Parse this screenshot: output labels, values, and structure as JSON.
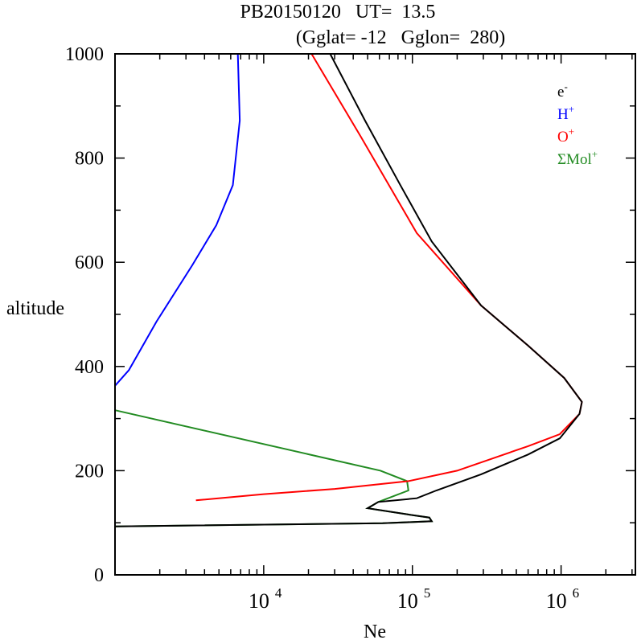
{
  "chart_data": {
    "type": "line",
    "title": "PB20150120   UT=  13.5",
    "subtitle": "(Gglat= -12   Gglon=  280)",
    "xlabel": "Ne",
    "ylabel": "altitude",
    "xscale": "log",
    "xlim": [
      1000,
      3160000
    ],
    "ylim": [
      0,
      1000
    ],
    "xticks": [
      {
        "base": "10",
        "exp": "4",
        "value": 10000
      },
      {
        "base": "10",
        "exp": "5",
        "value": 100000
      },
      {
        "base": "10",
        "exp": "6",
        "value": 1000000
      }
    ],
    "yticks": [
      "0",
      "200",
      "400",
      "600",
      "800",
      "1000"
    ],
    "legend_placement": "top-right",
    "series": [
      {
        "name": "e-",
        "label": "e",
        "sup": "-",
        "color": "#000000",
        "points": [
          [
            28000,
            1000
          ],
          [
            48000,
            872
          ],
          [
            83000,
            748
          ],
          [
            135000,
            640
          ],
          [
            290000,
            517
          ],
          [
            600000,
            440
          ],
          [
            1050000,
            378
          ],
          [
            1380000,
            332
          ],
          [
            1330000,
            309
          ],
          [
            980000,
            262
          ],
          [
            600000,
            231
          ],
          [
            290000,
            193
          ],
          [
            145000,
            162
          ],
          [
            107000,
            147
          ],
          [
            59000,
            140
          ],
          [
            50000,
            128
          ],
          [
            93000,
            116
          ],
          [
            130000,
            110
          ],
          [
            135000,
            103
          ],
          [
            63000,
            99
          ],
          [
            1000,
            93
          ]
        ]
      },
      {
        "name": "H+",
        "label": "H",
        "sup": "+",
        "color": "#0000ff",
        "points": [
          [
            6700,
            1000
          ],
          [
            6900,
            872
          ],
          [
            6200,
            748
          ],
          [
            4800,
            671
          ],
          [
            3300,
            594
          ],
          [
            1900,
            486
          ],
          [
            1240,
            393
          ],
          [
            1000,
            363
          ]
        ]
      },
      {
        "name": "O+",
        "label": "O",
        "sup": "+",
        "color": "#ff0000",
        "points": [
          [
            21000,
            1000
          ],
          [
            45000,
            841
          ],
          [
            107000,
            656
          ],
          [
            290000,
            517
          ],
          [
            600000,
            440
          ],
          [
            1050000,
            378
          ],
          [
            1380000,
            332
          ],
          [
            1330000,
            309
          ],
          [
            980000,
            270
          ],
          [
            600000,
            247
          ],
          [
            200000,
            200
          ],
          [
            94000,
            180
          ],
          [
            30000,
            165
          ],
          [
            10000,
            155
          ],
          [
            3500,
            143
          ]
        ]
      },
      {
        "name": "ΣMol+",
        "label": "ΣMol",
        "sup": "+",
        "color": "#228b22",
        "points": [
          [
            1000,
            316
          ],
          [
            61000,
            200
          ],
          [
            92000,
            180
          ],
          [
            94000,
            162
          ],
          [
            59000,
            140
          ],
          [
            50000,
            128
          ],
          [
            93000,
            116
          ],
          [
            130000,
            110
          ],
          [
            135000,
            103
          ],
          [
            63000,
            99
          ],
          [
            1000,
            93
          ]
        ]
      }
    ]
  }
}
